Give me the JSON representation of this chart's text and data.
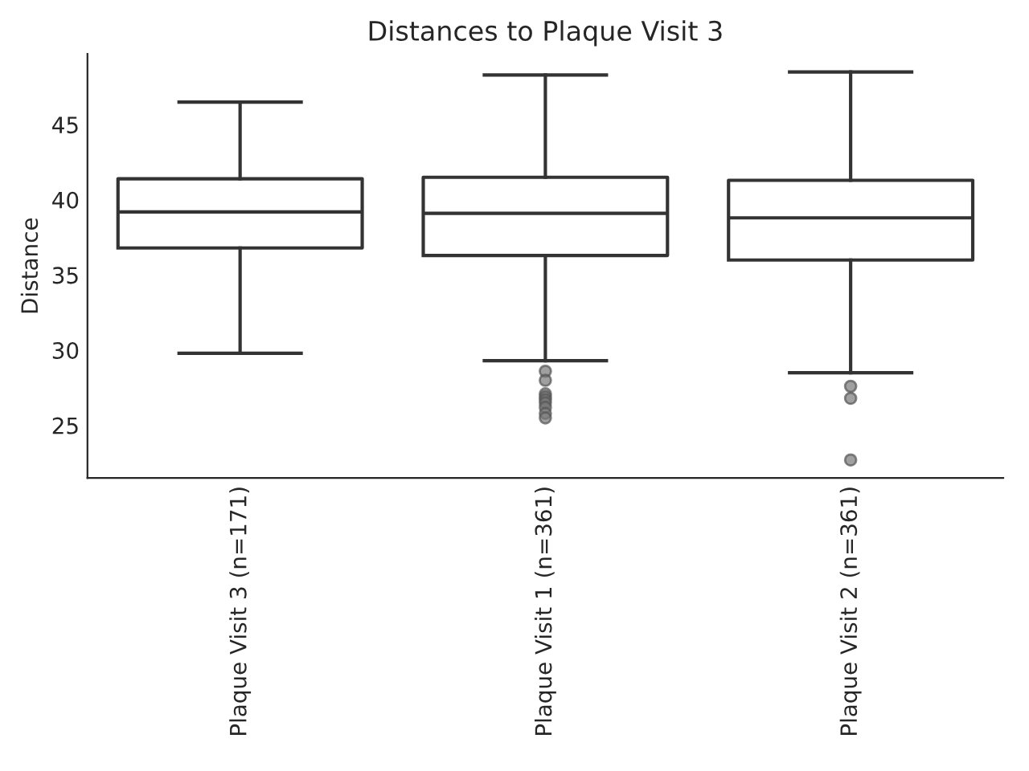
{
  "chart_data": {
    "type": "box",
    "title": "Distances to Plaque Visit 3",
    "ylabel": "Distance",
    "categories": [
      "Plaque Visit 3 (n=171)",
      "Plaque Visit 1 (n=361)",
      "Plaque Visit 2 (n=361)"
    ],
    "boxes": [
      {
        "low": 29.8,
        "q1": 36.8,
        "median": 39.2,
        "q3": 41.4,
        "high": 46.5
      },
      {
        "low": 29.3,
        "q1": 36.3,
        "median": 39.1,
        "q3": 41.5,
        "high": 48.3,
        "outliers": [
          28.6,
          28.0,
          27.1,
          26.9,
          26.7,
          26.5,
          26.2,
          25.8,
          25.5
        ]
      },
      {
        "low": 28.5,
        "q1": 36.0,
        "median": 38.8,
        "q3": 41.3,
        "high": 48.5,
        "outliers": [
          27.6,
          26.8,
          22.7
        ]
      }
    ],
    "ylim": [
      21.5,
      49.7
    ],
    "yticks": [
      25,
      30,
      35,
      40,
      45
    ],
    "grid": false
  }
}
